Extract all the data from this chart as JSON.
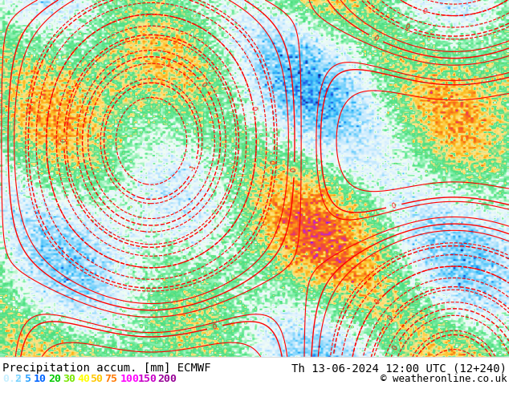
{
  "title_left": "Precipitation accum. [mm] ECMWF",
  "title_right": "Th 13-06-2024 12:00 UTC (12+240)",
  "copyright": "© weatheronline.co.uk",
  "legend_values": [
    0.5,
    2,
    5,
    10,
    20,
    30,
    40,
    50,
    75,
    100,
    150,
    200
  ],
  "legend_colors": [
    "#c8f0ff",
    "#78d2ff",
    "#28a0ff",
    "#0064ff",
    "#00c800",
    "#78e600",
    "#ffff00",
    "#ffc800",
    "#ff7800",
    "#ff00ff",
    "#c800c8",
    "#960096"
  ],
  "bg_color": "#ffffff",
  "map_bg": "#add8e6",
  "title_fontsize": 10,
  "legend_fontsize": 9.5,
  "copyright_fontsize": 9
}
